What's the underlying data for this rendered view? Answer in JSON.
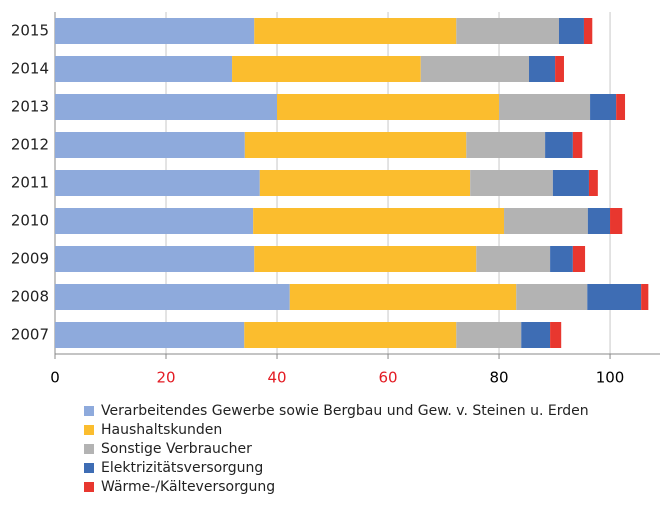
{
  "chart_data": {
    "type": "stacked_barh",
    "categories": [
      "2015",
      "2014",
      "2013",
      "2012",
      "2011",
      "2010",
      "2009",
      "2008",
      "2007"
    ],
    "series": [
      {
        "name": "Verarbeitendes Gewerbe sowie Bergbau und Gew. v. Steinen u. Erden",
        "color": "#8eaadc",
        "values": [
          35.9,
          31.9,
          40.0,
          34.2,
          36.9,
          35.7,
          35.9,
          42.3,
          34.1
        ]
      },
      {
        "name": "Haushaltskunden",
        "color": "#fbbd2e",
        "values": [
          36.4,
          34.0,
          40.0,
          39.9,
          37.9,
          45.2,
          40.0,
          40.8,
          38.2
        ]
      },
      {
        "name": "Sonstige Verbraucher",
        "color": "#b3b3b3",
        "values": [
          18.5,
          19.5,
          16.4,
          14.2,
          14.9,
          15.1,
          13.3,
          12.8,
          11.7
        ]
      },
      {
        "name": "Elektrizitätsversorgung",
        "color": "#3e6db4",
        "values": [
          4.5,
          4.7,
          4.7,
          5.0,
          6.5,
          4.0,
          4.1,
          9.7,
          5.2
        ]
      },
      {
        "name": "Wärme-/Kälteversorgung",
        "color": "#e8372f",
        "values": [
          1.5,
          1.6,
          1.6,
          1.7,
          1.6,
          2.2,
          2.2,
          1.3,
          2.0
        ]
      }
    ],
    "xlim": [
      0,
      109
    ],
    "xticks": [
      0,
      20,
      40,
      60,
      80,
      100
    ],
    "xtick_colors": [
      "#000000",
      "#e31b23",
      "#e31b23",
      "#e31b23",
      "#000000",
      "#000000"
    ],
    "grid": true
  }
}
